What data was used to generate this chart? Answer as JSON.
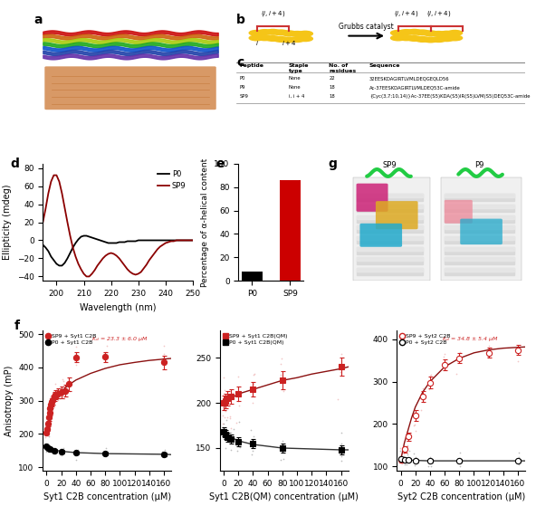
{
  "panel_c": {
    "headers": [
      "Peptide",
      "Staple type",
      "No. of residues",
      "Sequence"
    ],
    "rows": [
      [
        "P0",
        "None",
        "22",
        "32EESKDAGIRTLVMLDEQGEQLD56"
      ],
      [
        "P9",
        "None",
        "18",
        "Ac-37EESKDAGIRTLVMLDEQ53C-amide"
      ],
      [
        "SP9",
        "i, i + 4",
        "18",
        "{Cyc(3,7;10,14)}Ac-37EE(S5)KDA(S5)IR(S5)LVM(S5)DEQ53C-amide"
      ]
    ]
  },
  "panel_d": {
    "xlabel": "Wavelength (nm)",
    "ylabel": "Ellipticity (mdeg)",
    "xlim": [
      195,
      250
    ],
    "ylim": [
      -45,
      85
    ],
    "xticks": [
      200,
      210,
      220,
      230,
      240,
      250
    ],
    "yticks": [
      -40,
      -20,
      0,
      20,
      40,
      60,
      80
    ],
    "P0_x": [
      195,
      196,
      197,
      198,
      199,
      200,
      201,
      202,
      203,
      204,
      205,
      206,
      207,
      208,
      209,
      210,
      211,
      212,
      213,
      214,
      215,
      216,
      217,
      218,
      219,
      220,
      221,
      222,
      223,
      224,
      225,
      226,
      227,
      228,
      229,
      230,
      231,
      232,
      233,
      234,
      235,
      236,
      237,
      238,
      239,
      240,
      241,
      242,
      243,
      244,
      245,
      246,
      247,
      248,
      249,
      250
    ],
    "P0_y": [
      -5,
      -8,
      -12,
      -18,
      -22,
      -26,
      -28,
      -28,
      -25,
      -20,
      -14,
      -8,
      -3,
      1,
      4,
      5,
      5,
      4,
      3,
      2,
      1,
      0,
      -1,
      -2,
      -3,
      -3,
      -3,
      -3,
      -2,
      -2,
      -2,
      -1,
      -1,
      -1,
      -1,
      0,
      0,
      0,
      0,
      0,
      0,
      0,
      0,
      0,
      0,
      0,
      0,
      0,
      0,
      0,
      0,
      0,
      0,
      0,
      0,
      0
    ],
    "SP9_x": [
      195,
      196,
      197,
      198,
      199,
      200,
      201,
      202,
      203,
      204,
      205,
      206,
      207,
      208,
      209,
      210,
      211,
      212,
      213,
      214,
      215,
      216,
      217,
      218,
      219,
      220,
      221,
      222,
      223,
      224,
      225,
      226,
      227,
      228,
      229,
      230,
      231,
      232,
      233,
      234,
      235,
      236,
      237,
      238,
      239,
      240,
      241,
      242,
      243,
      244,
      245,
      246,
      247,
      248,
      249,
      250
    ],
    "SP9_y": [
      20,
      35,
      52,
      65,
      72,
      72,
      65,
      52,
      36,
      20,
      5,
      -8,
      -18,
      -26,
      -32,
      -37,
      -40,
      -40,
      -37,
      -33,
      -28,
      -24,
      -20,
      -17,
      -15,
      -14,
      -15,
      -17,
      -20,
      -24,
      -28,
      -32,
      -35,
      -37,
      -38,
      -37,
      -35,
      -31,
      -27,
      -22,
      -18,
      -14,
      -10,
      -7,
      -5,
      -3,
      -2,
      -1,
      -1,
      0,
      0,
      0,
      0,
      0,
      0,
      0
    ],
    "P0_color": "black",
    "SP9_color": "#8B0000",
    "legend_P0": "P0",
    "legend_SP9": "SP9"
  },
  "panel_e": {
    "ylabel": "Percentage of α-helical content",
    "categories": [
      "P0",
      "SP9"
    ],
    "values": [
      8,
      86
    ],
    "colors": [
      "black",
      "#CC0000"
    ],
    "ylim": [
      0,
      100
    ],
    "yticks": [
      0,
      20,
      40,
      60,
      80,
      100
    ]
  },
  "panel_f1": {
    "xlabel": "Syt1 C2B concentration (μM)",
    "ylabel": "Anisotropy (mP)",
    "xlim": [
      -5,
      170
    ],
    "ylim": [
      90,
      510
    ],
    "xticks": [
      0,
      20,
      40,
      60,
      80,
      100,
      120,
      140,
      160
    ],
    "yticks": [
      100,
      200,
      300,
      400,
      500
    ],
    "SP9_x": [
      0,
      1,
      2,
      3,
      4,
      5,
      6,
      7,
      8,
      10,
      12,
      15,
      20,
      25,
      30,
      40,
      80,
      160
    ],
    "SP9_y": [
      205,
      215,
      230,
      250,
      265,
      278,
      288,
      296,
      302,
      312,
      318,
      322,
      325,
      330,
      350,
      430,
      432,
      415
    ],
    "SP9_err": [
      6,
      6,
      8,
      10,
      10,
      12,
      12,
      12,
      13,
      14,
      14,
      15,
      18,
      18,
      20,
      15,
      15,
      20
    ],
    "P0_x": [
      0,
      2,
      5,
      10,
      20,
      40,
      80,
      160
    ],
    "P0_y": [
      162,
      158,
      155,
      150,
      147,
      143,
      141,
      139
    ],
    "P0_err": [
      5,
      5,
      5,
      5,
      5,
      5,
      5,
      5
    ],
    "SP9_fit_x": [
      0,
      1,
      2,
      3,
      4,
      5,
      6,
      8,
      10,
      15,
      20,
      30,
      40,
      60,
      80,
      100,
      120,
      140,
      160,
      170
    ],
    "SP9_fit_y": [
      205,
      216,
      228,
      240,
      251,
      261,
      270,
      284,
      296,
      315,
      328,
      347,
      362,
      382,
      397,
      408,
      415,
      421,
      425,
      427
    ],
    "P0_fit_x": [
      0,
      2,
      5,
      10,
      20,
      40,
      80,
      160,
      170
    ],
    "P0_fit_y": [
      162,
      159,
      156,
      152,
      148,
      144,
      141,
      139,
      138
    ]
  },
  "panel_f2": {
    "xlabel": "Syt1 C2B(QM) concentration (μM)",
    "xlim": [
      -5,
      170
    ],
    "ylim": [
      125,
      280
    ],
    "xticks": [
      0,
      20,
      40,
      60,
      80,
      100,
      120,
      140,
      160
    ],
    "yticks": [
      150,
      200,
      250
    ],
    "SP9_x": [
      0,
      2,
      5,
      10,
      20,
      40,
      80,
      160
    ],
    "SP9_y": [
      200,
      202,
      205,
      207,
      210,
      215,
      225,
      240
    ],
    "SP9_err": [
      8,
      8,
      8,
      8,
      8,
      8,
      10,
      10
    ],
    "P0_x": [
      0,
      2,
      5,
      10,
      20,
      40,
      80,
      160
    ],
    "P0_y": [
      168,
      165,
      162,
      160,
      157,
      155,
      150,
      148
    ],
    "P0_err": [
      5,
      5,
      5,
      5,
      5,
      5,
      5,
      5
    ],
    "SP9_fit_x": [
      0,
      10,
      20,
      40,
      60,
      80,
      100,
      120,
      140,
      160,
      170
    ],
    "SP9_fit_y": [
      200,
      205,
      210,
      215,
      220,
      225,
      228,
      232,
      235,
      238,
      240
    ],
    "P0_fit_x": [
      0,
      10,
      20,
      40,
      80,
      120,
      160,
      170
    ],
    "P0_fit_y": [
      168,
      162,
      158,
      154,
      150,
      149,
      148,
      148
    ]
  },
  "panel_f3": {
    "xlabel": "Syt2 C2B concentration (μM)",
    "xlim": [
      -5,
      170
    ],
    "ylim": [
      90,
      420
    ],
    "xticks": [
      0,
      20,
      40,
      60,
      80,
      100,
      120,
      140,
      160
    ],
    "yticks": [
      100,
      200,
      300,
      400
    ],
    "SP9_x": [
      0,
      5,
      10,
      20,
      30,
      40,
      60,
      80,
      120,
      160
    ],
    "SP9_y": [
      115,
      140,
      170,
      220,
      265,
      298,
      340,
      355,
      368,
      375
    ],
    "SP9_err": [
      5,
      8,
      10,
      12,
      13,
      14,
      13,
      12,
      12,
      12
    ],
    "P0_x": [
      0,
      5,
      10,
      20,
      40,
      80,
      160
    ],
    "P0_y": [
      118,
      116,
      115,
      114,
      113,
      113,
      113
    ],
    "P0_err": [
      4,
      4,
      4,
      4,
      4,
      4,
      4
    ],
    "SP9_fit_x": [
      0,
      2,
      5,
      10,
      15,
      20,
      30,
      40,
      60,
      80,
      100,
      120,
      140,
      160,
      170
    ],
    "SP9_fit_y": [
      115,
      130,
      155,
      185,
      215,
      240,
      275,
      300,
      335,
      355,
      368,
      375,
      379,
      381,
      382
    ],
    "P0_fit_x": [
      0,
      5,
      10,
      20,
      40,
      80,
      120,
      160,
      170
    ],
    "P0_fit_y": [
      118,
      116,
      115,
      114,
      113,
      113,
      113,
      113,
      113
    ]
  },
  "background_color": "#ffffff",
  "axis_fontsize": 7,
  "tick_fontsize": 6.5,
  "label_fontsize": 10
}
